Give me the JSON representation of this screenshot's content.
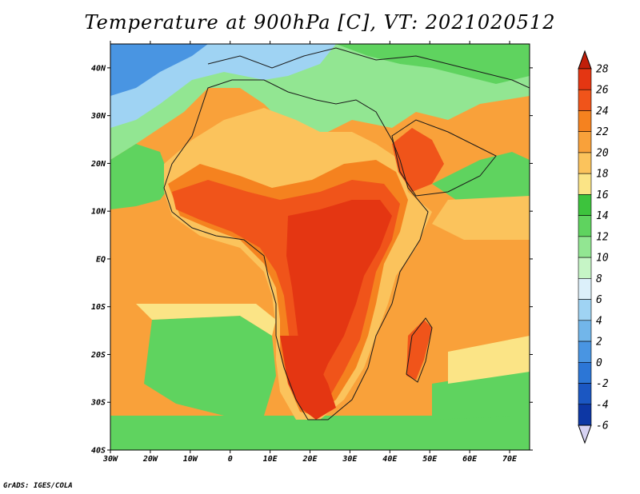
{
  "title": "Temperature at 900hPa [C], VT: 2021020512",
  "credit": "GrADS: IGES/COLA",
  "map": {
    "lon_range": [
      -30,
      75
    ],
    "lat_range": [
      -40,
      45
    ],
    "lat_ticks": [
      {
        "value": 40,
        "label": "40N"
      },
      {
        "value": 30,
        "label": "30N"
      },
      {
        "value": 20,
        "label": "20N"
      },
      {
        "value": 10,
        "label": "10N"
      },
      {
        "value": 0,
        "label": "EQ"
      },
      {
        "value": -10,
        "label": "10S"
      },
      {
        "value": -20,
        "label": "20S"
      },
      {
        "value": -30,
        "label": "30S"
      },
      {
        "value": -40,
        "label": "40S"
      }
    ],
    "lon_ticks": [
      {
        "value": -30,
        "label": "30W"
      },
      {
        "value": -20,
        "label": "20W"
      },
      {
        "value": -10,
        "label": "10W"
      },
      {
        "value": 0,
        "label": "0"
      },
      {
        "value": 10,
        "label": "10E"
      },
      {
        "value": 20,
        "label": "20E"
      },
      {
        "value": 30,
        "label": "30E"
      },
      {
        "value": 40,
        "label": "40E"
      },
      {
        "value": 50,
        "label": "50E"
      },
      {
        "value": 60,
        "label": "60E"
      },
      {
        "value": 70,
        "label": "70E"
      }
    ]
  },
  "colorbar": {
    "levels": [
      {
        "label": "28",
        "color": "#e43612"
      },
      {
        "label": "26",
        "color": "#f0541a"
      },
      {
        "label": "24",
        "color": "#f5821f"
      },
      {
        "label": "22",
        "color": "#f9a13a"
      },
      {
        "label": "20",
        "color": "#fbc35c"
      },
      {
        "label": "18",
        "color": "#fbe486"
      },
      {
        "label": "16",
        "color": "#3dc33d"
      },
      {
        "label": "14",
        "color": "#5fd35f"
      },
      {
        "label": "12",
        "color": "#92e692"
      },
      {
        "label": "10",
        "color": "#c6f5c6"
      },
      {
        "label": "8",
        "color": "#dcf0fa"
      },
      {
        "label": "6",
        "color": "#9fd3f3"
      },
      {
        "label": "4",
        "color": "#72b6ea"
      },
      {
        "label": "2",
        "color": "#4995e2"
      },
      {
        "label": "0",
        "color": "#2c76d6"
      },
      {
        "label": "-2",
        "color": "#1b57c2"
      },
      {
        "label": "-4",
        "color": "#0d37a4"
      },
      {
        "label": "-6",
        "color": "#0a1a7a"
      }
    ],
    "top_color": "#c11f0a",
    "bottom_color": "#d6d2f2"
  }
}
